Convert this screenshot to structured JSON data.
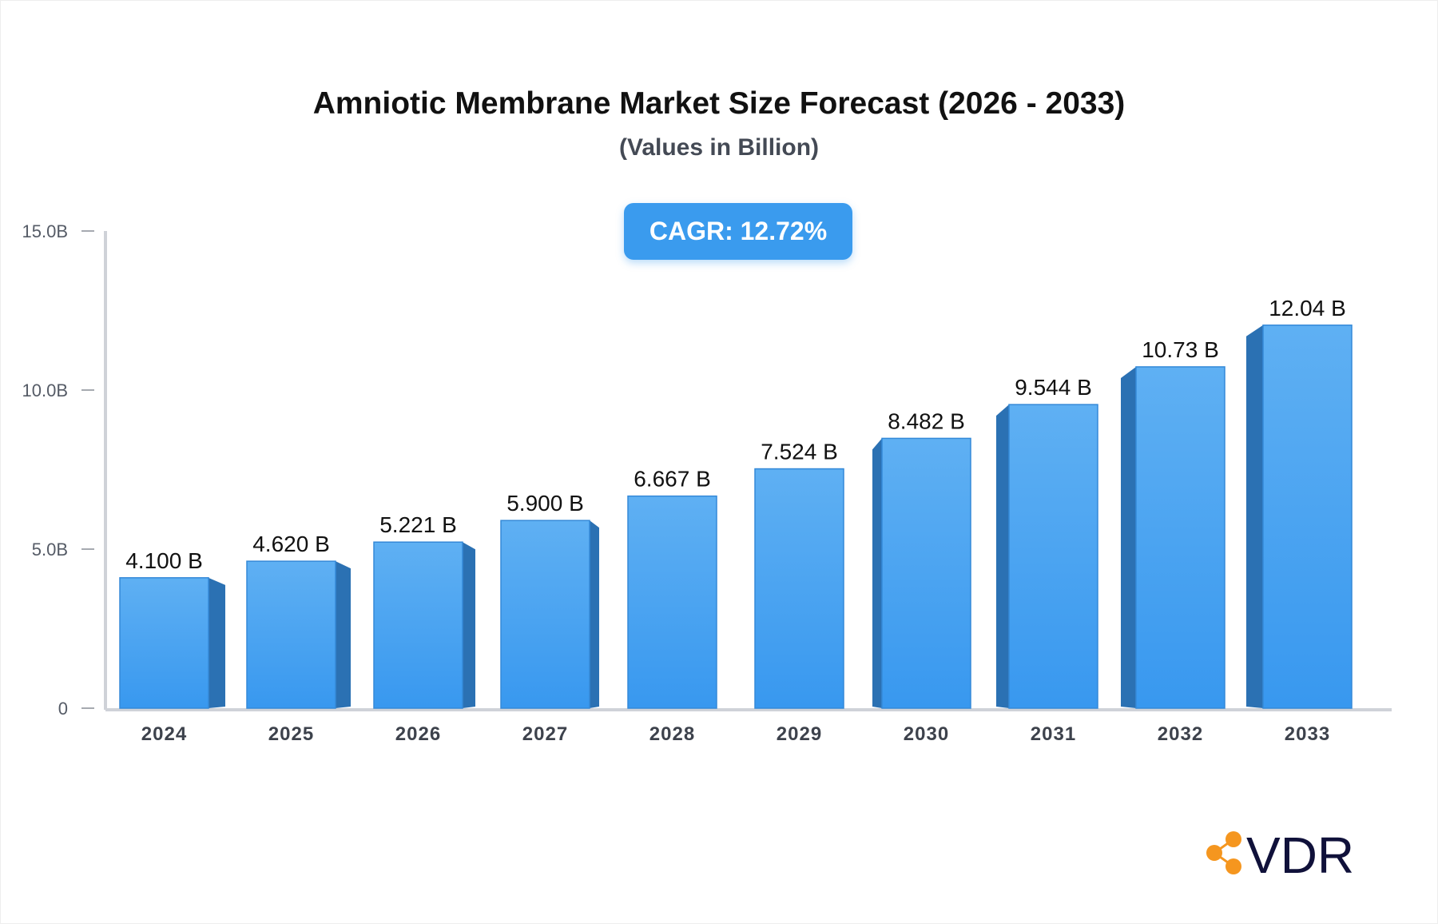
{
  "chart_data": {
    "type": "bar",
    "title": "Amniotic Membrane Market Size Forecast (2026 - 2033)",
    "subtitle": "(Values in Billion)",
    "annotation": "CAGR: 12.72%",
    "categories": [
      "2024",
      "2025",
      "2026",
      "2027",
      "2028",
      "2029",
      "2030",
      "2031",
      "2032",
      "2033"
    ],
    "values": [
      4.1,
      4.62,
      5.221,
      5.9,
      6.667,
      7.524,
      8.482,
      9.544,
      10.73,
      12.04
    ],
    "data_labels": [
      "4.100 B",
      "4.620 B",
      "5.221 B",
      "5.900 B",
      "6.667 B",
      "7.524 B",
      "8.482 B",
      "9.544 B",
      "10.73 B",
      "12.04 B"
    ],
    "ylim": [
      0,
      15
    ],
    "yticks": [
      0,
      5,
      10,
      15
    ],
    "ytick_labels": [
      "0",
      "5.0B",
      "10.0B",
      "15.0B"
    ],
    "xlabel": "",
    "ylabel": "",
    "grid": false,
    "colors": {
      "bar_top": "#5fb0f3",
      "bar_bottom": "#3898ef",
      "bar_side": "#2b71b3",
      "badge": "#3a9bee",
      "axis": "#cfd2d8"
    }
  },
  "logo": {
    "text": "VDR",
    "icon": "share-nodes-icon",
    "icon_color": "#f5961f",
    "text_color": "#10113a"
  }
}
